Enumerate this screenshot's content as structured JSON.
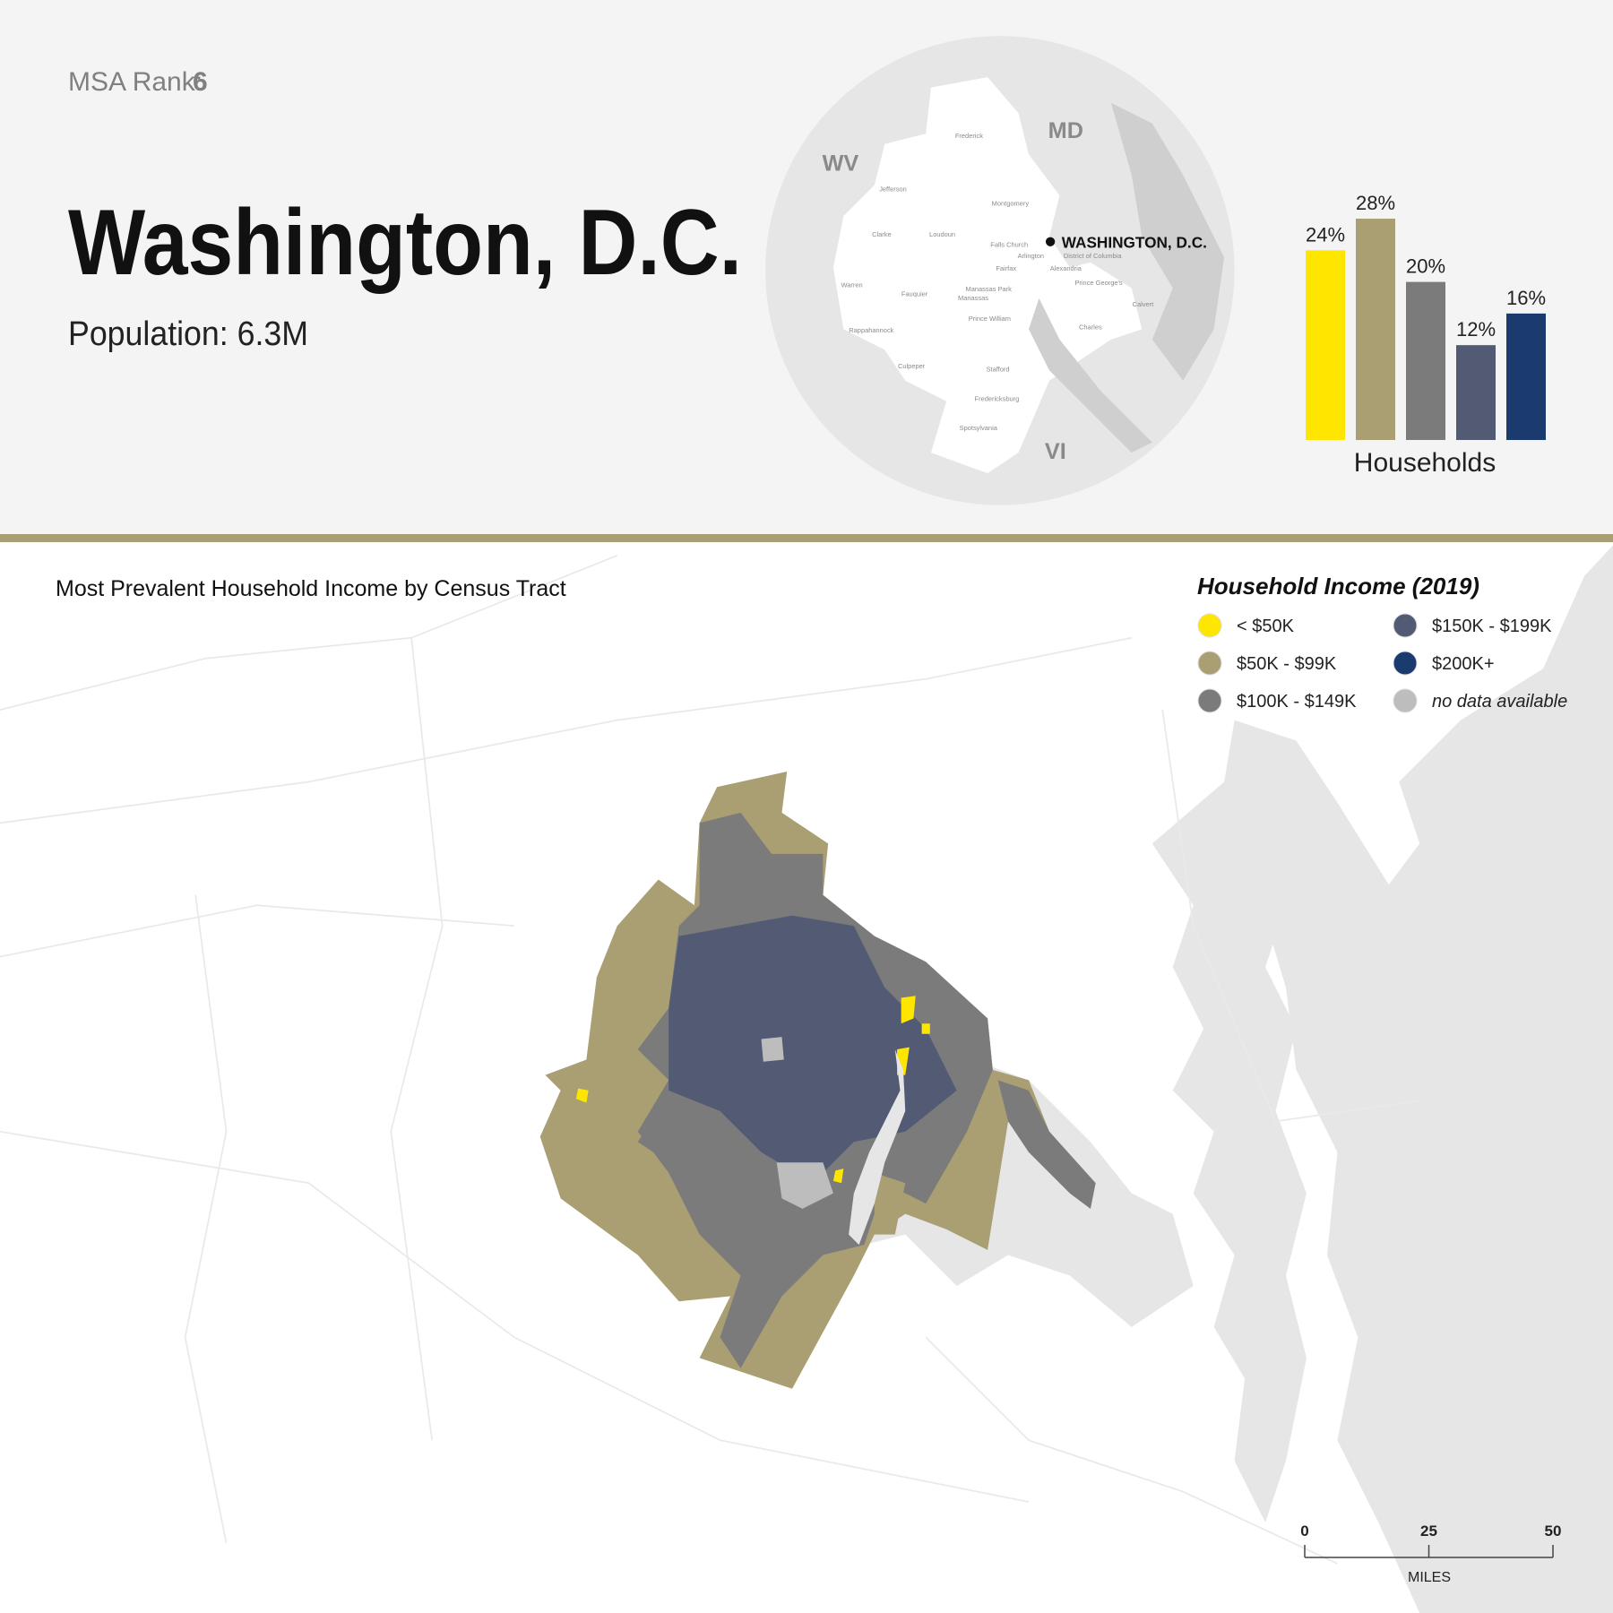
{
  "header": {
    "msa_rank_label": "MSA Rank:",
    "msa_rank": "6",
    "title": "Washington, D.C.",
    "population": "Population: 6.3M"
  },
  "inset_map": {
    "states": [
      "WV",
      "MD",
      "VI"
    ],
    "city": "WASHINGTON, D.C.",
    "counties": [
      "Frederick",
      "Jefferson",
      "Montgomery",
      "Clarke",
      "Loudoun",
      "Falls Church",
      "Arlington",
      "District of Columbia",
      "Fairfax",
      "Alexandria",
      "Warren",
      "Fauquier",
      "Manassas Park",
      "Manassas",
      "Prince George's",
      "Calvert",
      "Prince William",
      "Charles",
      "Rappahannock",
      "Culpeper",
      "Stafford",
      "Fredericksburg",
      "Spotsylvania"
    ]
  },
  "chart_data": {
    "type": "bar",
    "categories": [
      null,
      null,
      null,
      null,
      null
    ],
    "values": [
      24,
      28,
      20,
      12,
      16
    ],
    "value_labels": [
      "24%",
      "28%",
      "20%",
      "12%",
      "16%"
    ],
    "colors": [
      "#ffe600",
      "#a99f73",
      "#7b7b7b",
      "#525a74",
      "#1b3a6e"
    ],
    "x_label": "Households"
  },
  "map": {
    "subtitle": "Most Prevalent Household Income by Census Tract",
    "legend": {
      "title": "Household Income (2019)",
      "items": [
        {
          "label": "< $50K",
          "color": "#ffe600"
        },
        {
          "label": "$50K - $99K",
          "color": "#a99f73"
        },
        {
          "label": "$100K - $149K",
          "color": "#7b7b7b"
        },
        {
          "label": "$150K - $199K",
          "color": "#525a74"
        },
        {
          "label": "$200K+",
          "color": "#1b3a6e"
        },
        {
          "label": "no data available",
          "color": "#bdbdbd"
        }
      ]
    },
    "scale_bar": {
      "ticks": [
        0,
        25,
        50
      ],
      "unit": "MILES"
    }
  }
}
